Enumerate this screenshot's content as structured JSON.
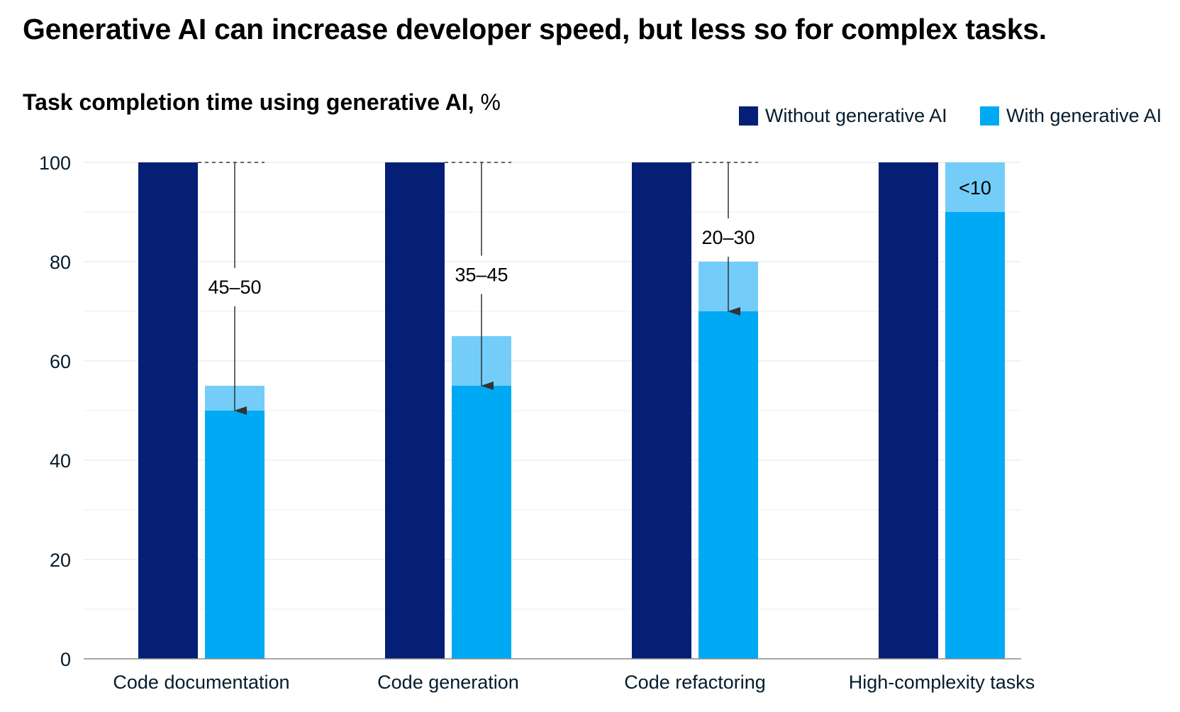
{
  "title": "Generative AI can increase developer speed, but less so for complex tasks.",
  "subtitle_bold": "Task completion time using generative AI,",
  "subtitle_unit": "%",
  "colors": {
    "without": "#051f77",
    "with": "#00a9f4",
    "with_range": "#73cdf8",
    "axis": "#051c2c"
  },
  "chart_data": {
    "type": "bar",
    "title": "Generative AI can increase developer speed, but less so for complex tasks.",
    "ylabel": "Task completion time using generative AI, %",
    "ylim": [
      0,
      100
    ],
    "yticks": [
      0,
      20,
      40,
      60,
      80,
      100
    ],
    "grid": true,
    "legend_position": "top-right",
    "categories": [
      "Code documentation",
      "Code generation",
      "Code refactoring",
      "High-complexity tasks"
    ],
    "series": [
      {
        "name": "Without generative AI",
        "values": [
          100,
          100,
          100,
          100
        ]
      },
      {
        "name": "With generative AI",
        "low": [
          50,
          55,
          70,
          90
        ],
        "high": [
          55,
          65,
          80,
          100
        ]
      }
    ],
    "annotations": [
      "45–50",
      "35–45",
      "20–30",
      "<10"
    ]
  }
}
